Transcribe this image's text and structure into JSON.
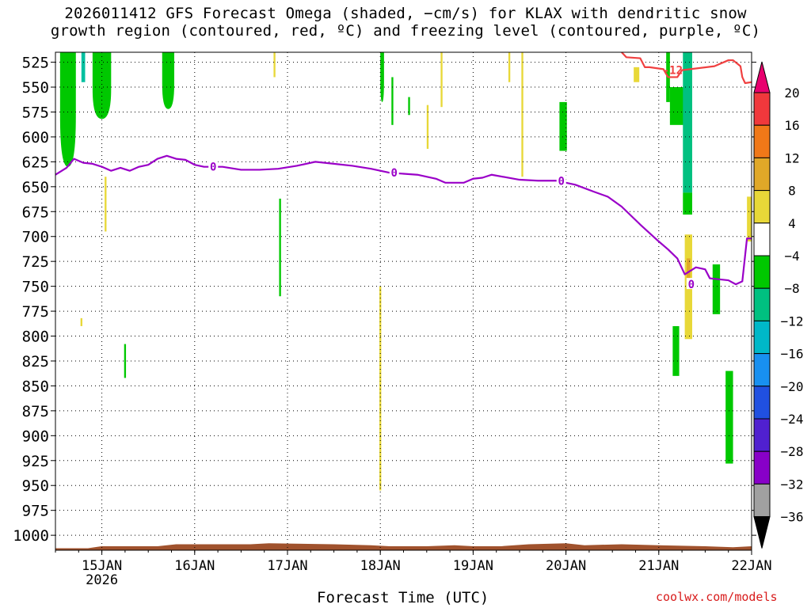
{
  "title_line1": "2026011412 GFS Forecast Omega (shaded, −cm/s) for KLAX with dendritic snow",
  "title_line2": "growth region (contoured, red, ºC) and freezing level (contoured, purple, ºC)",
  "credit": "coolwx.com/models",
  "chart_data": {
    "type": "heatmap",
    "xlabel": "Forecast Time (UTC)",
    "x_ticks": [
      "15JAN",
      "16JAN",
      "17JAN",
      "18JAN",
      "19JAN",
      "20JAN",
      "21JAN",
      "22JAN"
    ],
    "x_tick_year": "2026",
    "x_range_days": [
      14.5,
      22.0
    ],
    "y_ticks": [
      525,
      550,
      575,
      600,
      625,
      650,
      675,
      700,
      725,
      750,
      775,
      800,
      825,
      850,
      875,
      900,
      925,
      950,
      975,
      1000
    ],
    "y_range_hpa": [
      515,
      1015
    ],
    "grid": true,
    "colorbar": {
      "labels": [
        "20",
        "16",
        "12",
        "8",
        "4",
        "−4",
        "−8",
        "−12",
        "−16",
        "−20",
        "−24",
        "−28",
        "−32",
        "−36"
      ],
      "colors": [
        "#e8006e",
        "#f0383c",
        "#f07818",
        "#e0a828",
        "#e8d838",
        "#ffffff",
        "#00c800",
        "#00c080",
        "#00b8c8",
        "#1890f0",
        "#2050e0",
        "#5020d0",
        "#8800c8",
        "#a0a0a0",
        "#000000"
      ]
    },
    "freezing_level": {
      "label": "0",
      "color": "#9a00c8",
      "points": [
        [
          14.5,
          638
        ],
        [
          14.62,
          631
        ],
        [
          14.7,
          622
        ],
        [
          14.8,
          626
        ],
        [
          14.9,
          627
        ],
        [
          15.0,
          630
        ],
        [
          15.1,
          634
        ],
        [
          15.2,
          631
        ],
        [
          15.3,
          634
        ],
        [
          15.4,
          630
        ],
        [
          15.5,
          628
        ],
        [
          15.6,
          622
        ],
        [
          15.7,
          619
        ],
        [
          15.8,
          622
        ],
        [
          15.9,
          623
        ],
        [
          16.0,
          628
        ],
        [
          16.1,
          630
        ],
        [
          16.3,
          630
        ],
        [
          16.5,
          633
        ],
        [
          16.7,
          633
        ],
        [
          16.9,
          632
        ],
        [
          17.1,
          629
        ],
        [
          17.3,
          625
        ],
        [
          17.5,
          627
        ],
        [
          17.7,
          629
        ],
        [
          17.9,
          632
        ],
        [
          18.1,
          636
        ],
        [
          18.4,
          638
        ],
        [
          18.6,
          642
        ],
        [
          18.7,
          646
        ],
        [
          18.9,
          646
        ],
        [
          19.0,
          642
        ],
        [
          19.1,
          641
        ],
        [
          19.2,
          638
        ],
        [
          19.5,
          643
        ],
        [
          19.7,
          644
        ],
        [
          19.9,
          644
        ],
        [
          20.1,
          648
        ],
        [
          20.3,
          655
        ],
        [
          20.45,
          660
        ],
        [
          20.6,
          670
        ],
        [
          20.8,
          688
        ],
        [
          21.0,
          705
        ],
        [
          21.1,
          713
        ],
        [
          21.2,
          722
        ],
        [
          21.28,
          738
        ],
        [
          21.4,
          731
        ],
        [
          21.5,
          733
        ],
        [
          21.55,
          742
        ],
        [
          21.75,
          744
        ],
        [
          21.83,
          748
        ],
        [
          21.9,
          745
        ],
        [
          21.95,
          702
        ],
        [
          22.0,
          702
        ]
      ]
    },
    "dgz_contour": {
      "label": "-12",
      "color": "#f04040",
      "points": [
        [
          20.6,
          515
        ],
        [
          20.65,
          520
        ],
        [
          20.8,
          521
        ],
        [
          20.85,
          530
        ],
        [
          20.9,
          530
        ],
        [
          21.05,
          532
        ],
        [
          21.1,
          540
        ],
        [
          21.2,
          540
        ],
        [
          21.25,
          533
        ],
        [
          21.6,
          529
        ],
        [
          21.75,
          523
        ],
        [
          21.8,
          523
        ],
        [
          21.88,
          529
        ],
        [
          21.9,
          540
        ],
        [
          21.93,
          546
        ],
        [
          22.0,
          545
        ]
      ]
    },
    "omega_patches": [
      {
        "value": -6,
        "color": "#00c800",
        "shape": "drip",
        "x": [
          14.55,
          14.72
        ],
        "p": [
          515,
          630
        ]
      },
      {
        "value": -6,
        "color": "#00c800",
        "shape": "drip",
        "x": [
          14.9,
          15.1
        ],
        "p": [
          515,
          582
        ]
      },
      {
        "value": -12,
        "color": "#00c0a0",
        "shape": "rect",
        "x": [
          14.78,
          14.82
        ],
        "p": [
          515,
          545
        ]
      },
      {
        "value": -6,
        "color": "#00c800",
        "shape": "drip",
        "x": [
          15.65,
          15.78
        ],
        "p": [
          515,
          572
        ]
      },
      {
        "value": -6,
        "color": "#00c800",
        "shape": "drip",
        "x": [
          18.0,
          18.04
        ],
        "p": [
          515,
          565
        ]
      },
      {
        "value": -6,
        "color": "#00c800",
        "shape": "rect",
        "x": [
          18.12,
          18.14
        ],
        "p": [
          540,
          588
        ]
      },
      {
        "value": -6,
        "color": "#00c800",
        "shape": "rect",
        "x": [
          18.3,
          18.32
        ],
        "p": [
          560,
          578
        ]
      },
      {
        "value": -6,
        "color": "#00c800",
        "shape": "rect",
        "x": [
          19.93,
          20.01
        ],
        "p": [
          565,
          614
        ]
      },
      {
        "value": -6,
        "color": "#00c800",
        "shape": "rect",
        "x": [
          21.08,
          21.12
        ],
        "p": [
          515,
          565
        ]
      },
      {
        "value": -6,
        "color": "#00c800",
        "shape": "rect",
        "x": [
          21.12,
          21.28
        ],
        "p": [
          550,
          588
        ]
      },
      {
        "value": -12,
        "color": "#00c080",
        "shape": "rect",
        "x": [
          21.26,
          21.36
        ],
        "p": [
          515,
          656
        ]
      },
      {
        "value": -6,
        "color": "#00c800",
        "shape": "rect",
        "x": [
          21.26,
          21.36
        ],
        "p": [
          656,
          678
        ]
      },
      {
        "value": -6,
        "color": "#00c800",
        "shape": "rect",
        "x": [
          21.15,
          21.22
        ],
        "p": [
          790,
          840
        ]
      },
      {
        "value": -6,
        "color": "#00c800",
        "shape": "rect",
        "x": [
          21.58,
          21.66
        ],
        "p": [
          728,
          778
        ]
      },
      {
        "value": -6,
        "color": "#00c800",
        "shape": "rect",
        "x": [
          21.72,
          21.8
        ],
        "p": [
          835,
          928
        ]
      },
      {
        "value": -6,
        "color": "#00c800",
        "shape": "rect",
        "x": [
          16.91,
          16.93
        ],
        "p": [
          662,
          760
        ]
      },
      {
        "value": -6,
        "color": "#00c800",
        "shape": "rect",
        "x": [
          15.24,
          15.26
        ],
        "p": [
          808,
          842
        ]
      },
      {
        "value": 5,
        "color": "#e8d838",
        "shape": "rect",
        "x": [
          21.28,
          21.36
        ],
        "p": [
          698,
          803
        ]
      },
      {
        "value": 9,
        "color": "#e0a828",
        "shape": "rect",
        "x": [
          21.3,
          21.34
        ],
        "p": [
          722,
          748
        ]
      },
      {
        "value": 5,
        "color": "#e8d838",
        "shape": "rect",
        "x": [
          21.95,
          22.0
        ],
        "p": [
          660,
          705
        ]
      },
      {
        "value": 5,
        "color": "#e8d838",
        "shape": "rect",
        "x": [
          20.73,
          20.79
        ],
        "p": [
          530,
          545
        ]
      },
      {
        "value": 5,
        "color": "#e8d838",
        "shape": "rect",
        "x": [
          17.99,
          18.01
        ],
        "p": [
          750,
          955
        ]
      },
      {
        "value": 5,
        "color": "#e8d838",
        "shape": "rect",
        "x": [
          15.03,
          15.05
        ],
        "p": [
          640,
          695
        ]
      },
      {
        "value": 5,
        "color": "#e8d838",
        "shape": "rect",
        "x": [
          14.77,
          14.79
        ],
        "p": [
          782,
          790
        ]
      },
      {
        "value": 5,
        "color": "#e8d838",
        "shape": "rect",
        "x": [
          19.38,
          19.4
        ],
        "p": [
          515,
          545
        ]
      },
      {
        "value": 5,
        "color": "#e8d838",
        "shape": "rect",
        "x": [
          19.52,
          19.54
        ],
        "p": [
          515,
          640
        ]
      },
      {
        "value": 5,
        "color": "#e8d838",
        "shape": "rect",
        "x": [
          18.5,
          18.52
        ],
        "p": [
          568,
          612
        ]
      },
      {
        "value": 5,
        "color": "#e8d838",
        "shape": "rect",
        "x": [
          16.85,
          16.87
        ],
        "p": [
          515,
          540
        ]
      },
      {
        "value": 5,
        "color": "#e8d838",
        "shape": "rect",
        "x": [
          18.65,
          18.67
        ],
        "p": [
          515,
          570
        ]
      }
    ],
    "terrain": {
      "color": "#a0522d",
      "top_profile_hpa": [
        [
          14.5,
          1013
        ],
        [
          14.85,
          1013
        ],
        [
          15.0,
          1011
        ],
        [
          15.6,
          1011
        ],
        [
          15.8,
          1009
        ],
        [
          16.6,
          1009
        ],
        [
          16.8,
          1008
        ],
        [
          17.5,
          1009
        ],
        [
          17.9,
          1010
        ],
        [
          18.1,
          1011
        ],
        [
          18.5,
          1011
        ],
        [
          18.8,
          1010
        ],
        [
          19.0,
          1011
        ],
        [
          19.3,
          1011
        ],
        [
          19.6,
          1009
        ],
        [
          20.0,
          1008
        ],
        [
          20.2,
          1010
        ],
        [
          20.6,
          1009
        ],
        [
          21.0,
          1010
        ],
        [
          21.5,
          1011
        ],
        [
          21.8,
          1012
        ],
        [
          22.0,
          1011
        ]
      ]
    }
  }
}
